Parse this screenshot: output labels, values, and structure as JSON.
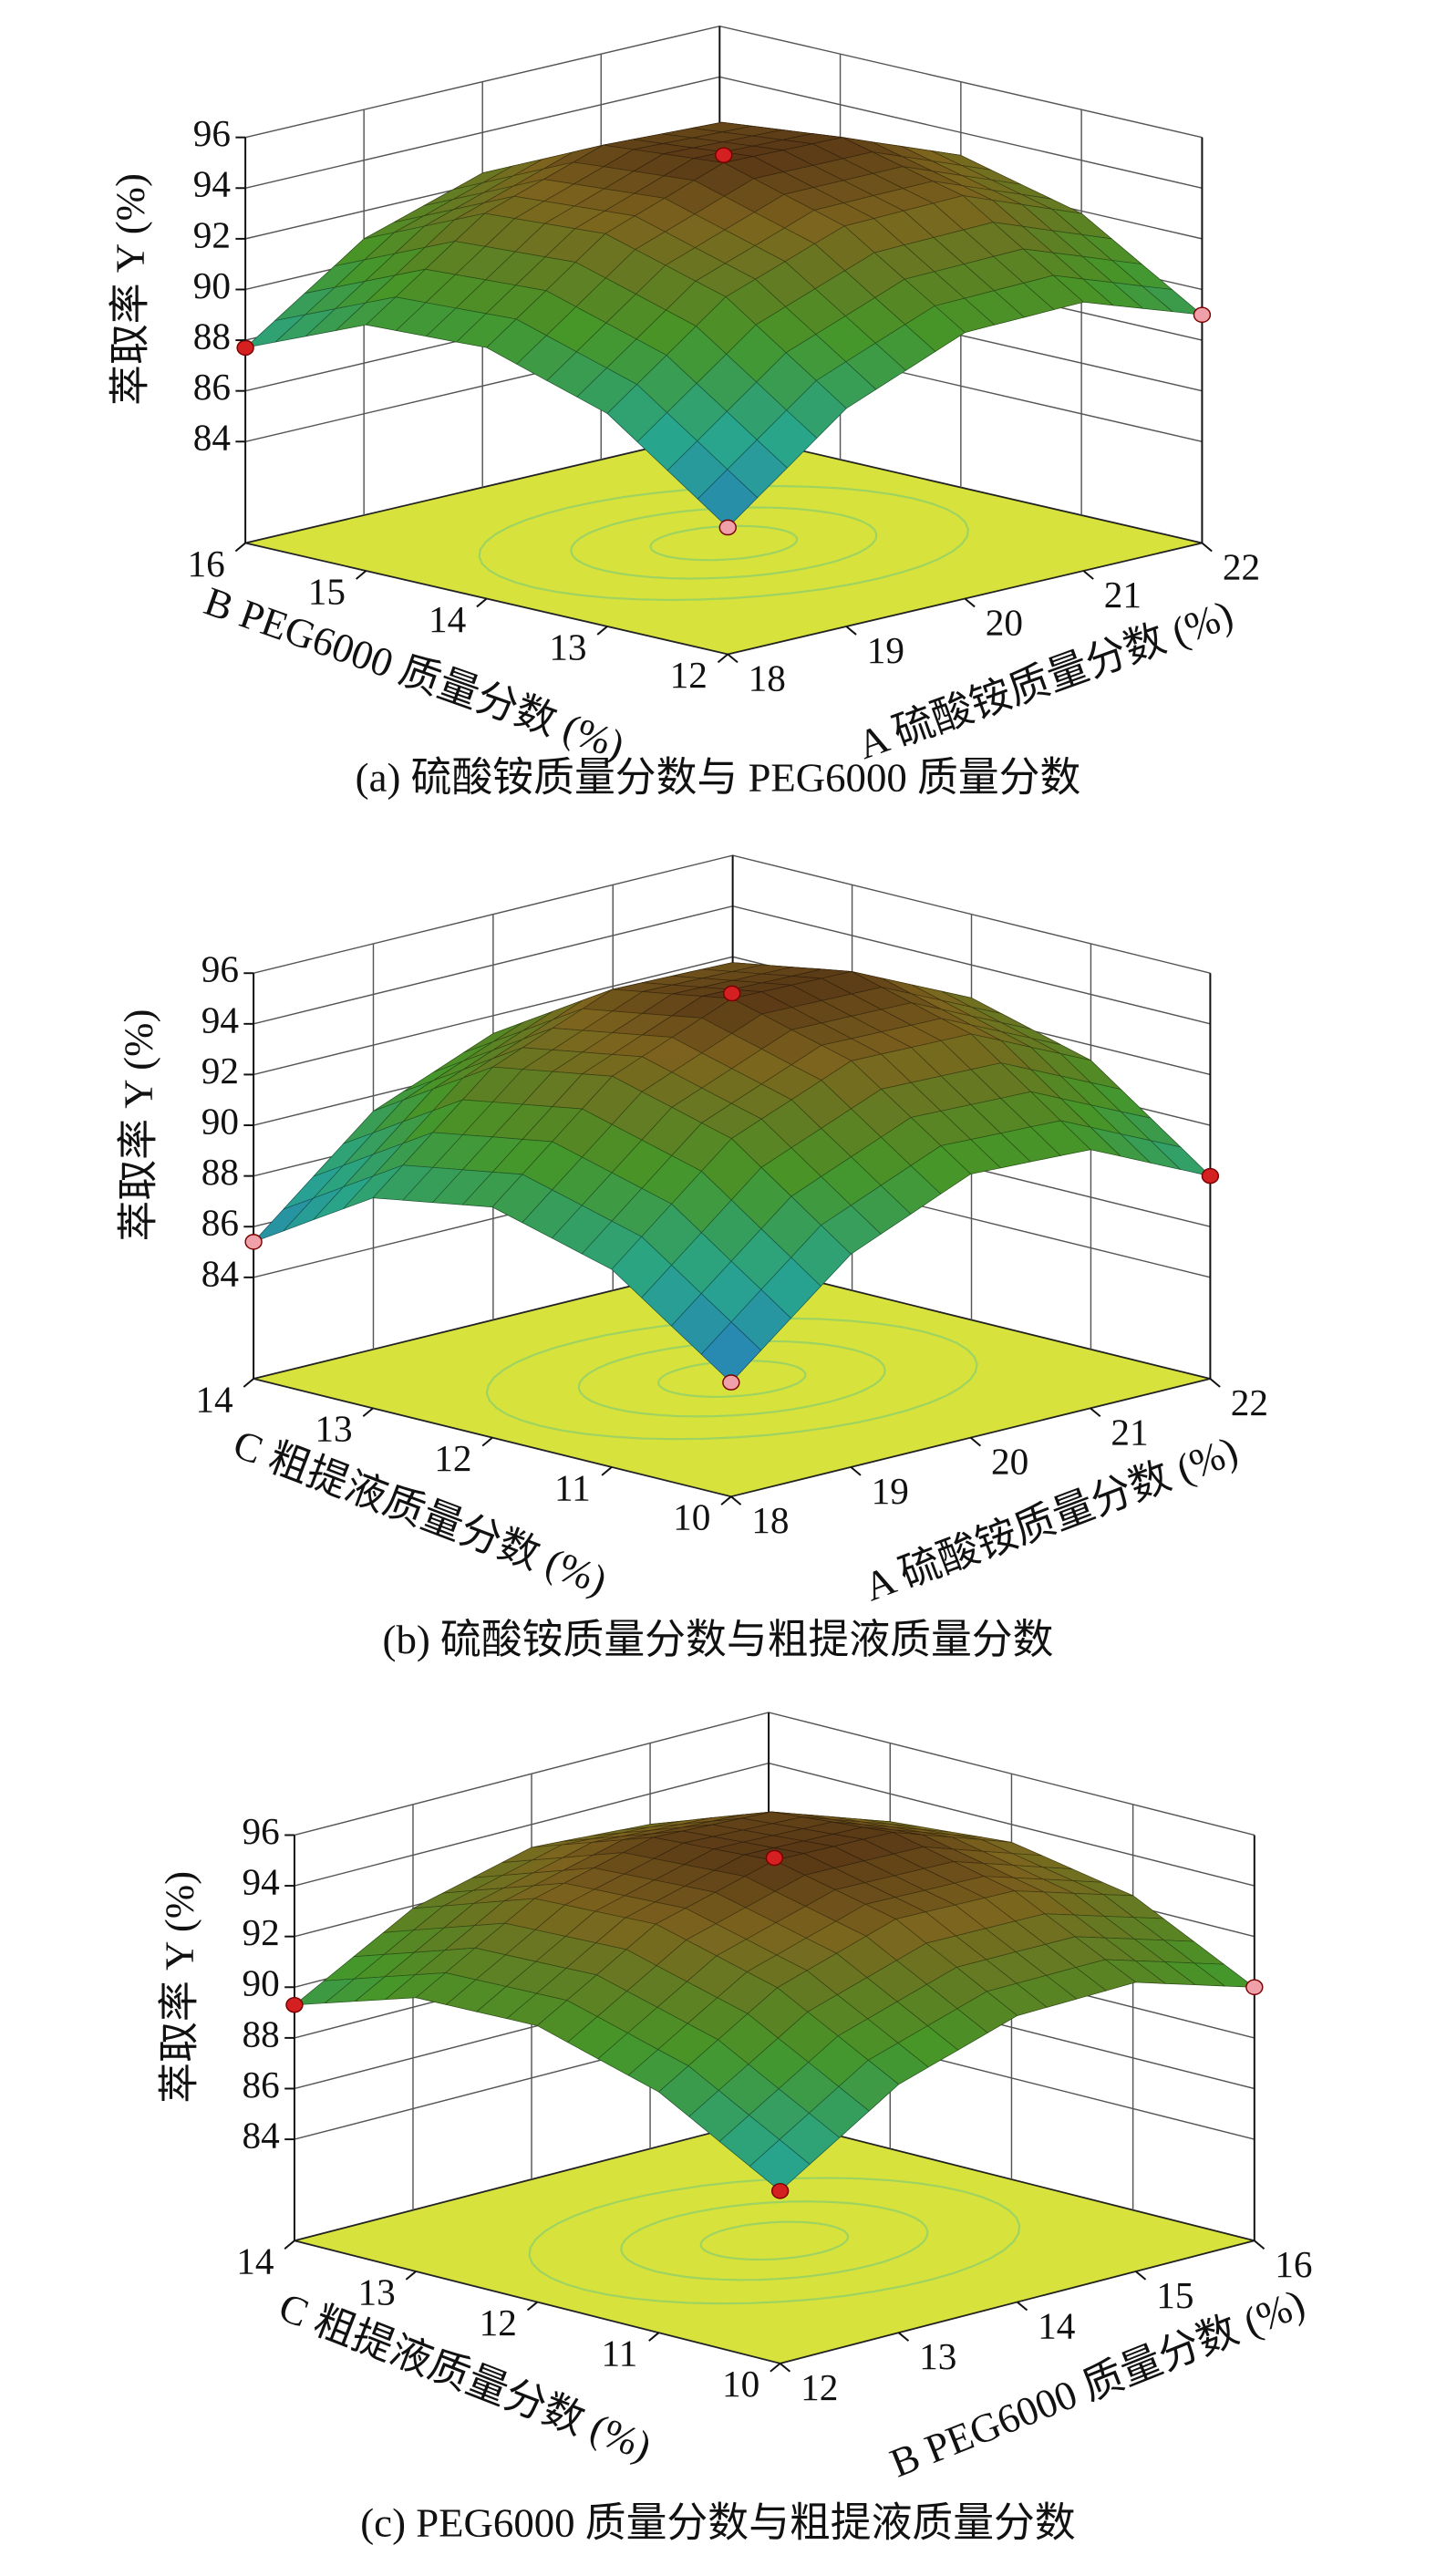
{
  "chart_data": [
    {
      "type": "surface",
      "title": "(a) 硫酸铵质量分数与 PEG6000 质量分数",
      "xlabel": "A 硫酸铵质量分数 (%)",
      "ylabel": "B PEG6000 质量分数 (%)",
      "zlabel": "萃取率 Y (%)",
      "x": [
        18,
        19,
        20,
        21,
        22
      ],
      "y": [
        12,
        13,
        14,
        15,
        16
      ],
      "z": [
        [
          85.0,
          88.6,
          90.5,
          90.6,
          89.0
        ],
        [
          88.4,
          91.9,
          93.6,
          93.7,
          91.9
        ],
        [
          89.9,
          93.3,
          95.0,
          94.9,
          93.1
        ],
        [
          89.7,
          93.0,
          94.6,
          94.4,
          92.4
        ],
        [
          87.7,
          90.9,
          92.4,
          92.1,
          90.0
        ]
      ],
      "xlim": [
        18,
        22
      ],
      "ylim": [
        12,
        16
      ],
      "zlim": [
        80,
        96
      ],
      "xticks": [
        18,
        19,
        20,
        21,
        22
      ],
      "yticks": [
        12,
        13,
        14,
        15,
        16
      ],
      "zticks": [
        84,
        86,
        88,
        90,
        92,
        94,
        96
      ],
      "points": {
        "x": [
          20,
          18,
          18,
          22
        ],
        "y": [
          14,
          16,
          12,
          12
        ],
        "z": [
          95.3,
          87.7,
          85.0,
          89.0
        ],
        "colors": [
          "#d42020",
          "#d42020",
          "#f0a0a8",
          "#f0a0a8"
        ]
      },
      "grid": true
    },
    {
      "type": "surface",
      "title": "(b) 硫酸铵质量分数与粗提液质量分数",
      "xlabel": "A 硫酸铵质量分数 (%)",
      "ylabel": "C 粗提液质量分数 (%)",
      "zlabel": "萃取率 Y (%)",
      "x": [
        18,
        19,
        20,
        21,
        22
      ],
      "y": [
        10,
        11,
        12,
        13,
        14
      ],
      "z": [
        [
          84.5,
          88.4,
          90.4,
          90.2,
          88.0
        ],
        [
          87.8,
          91.8,
          93.7,
          93.6,
          91.4
        ],
        [
          89.1,
          93.1,
          95.0,
          94.9,
          92.7
        ],
        [
          88.3,
          92.3,
          94.2,
          94.1,
          91.9
        ],
        [
          85.4,
          89.4,
          91.3,
          91.2,
          89.0
        ]
      ],
      "xlim": [
        18,
        22
      ],
      "ylim": [
        10,
        14
      ],
      "zlim": [
        80,
        96
      ],
      "xticks": [
        18,
        19,
        20,
        21,
        22
      ],
      "yticks": [
        10,
        11,
        12,
        13,
        14
      ],
      "zticks": [
        84,
        86,
        88,
        90,
        92,
        94,
        96
      ],
      "points": {
        "x": [
          20,
          18,
          18,
          22
        ],
        "y": [
          12,
          14,
          10,
          10
        ],
        "z": [
          95.2,
          85.4,
          84.5,
          88.0
        ],
        "colors": [
          "#d42020",
          "#f0a0a8",
          "#f0a0a8",
          "#d42020"
        ]
      },
      "grid": true
    },
    {
      "type": "surface",
      "title": "(c) PEG6000 质量分数与粗提液质量分数",
      "xlabel": "B PEG6000 质量分数 (%)",
      "ylabel": "C 粗提液质量分数 (%)",
      "zlabel": "萃取率 Y (%)",
      "x": [
        12,
        13,
        14,
        15,
        16
      ],
      "y": [
        10,
        11,
        12,
        13,
        14
      ],
      "z": [
        [
          86.8,
          89.8,
          91.3,
          91.4,
          90.0
        ],
        [
          89.5,
          92.4,
          93.9,
          93.8,
          92.4
        ],
        [
          90.9,
          93.7,
          95.0,
          94.9,
          93.3
        ],
        [
          90.8,
          93.5,
          94.7,
          94.5,
          92.9
        ],
        [
          89.3,
          91.9,
          93.1,
          92.8,
          91.0
        ]
      ],
      "xlim": [
        12,
        16
      ],
      "ylim": [
        10,
        14
      ],
      "zlim": [
        80,
        96
      ],
      "xticks": [
        12,
        13,
        14,
        15,
        16
      ],
      "yticks": [
        10,
        11,
        12,
        13,
        14
      ],
      "zticks": [
        84,
        86,
        88,
        90,
        92,
        94,
        96
      ],
      "points": {
        "x": [
          14,
          12,
          12,
          16
        ],
        "y": [
          12,
          14,
          10,
          10
        ],
        "z": [
          95.1,
          89.3,
          86.8,
          90.0
        ],
        "colors": [
          "#d42020",
          "#d42020",
          "#d42020",
          "#f0a0a8"
        ]
      },
      "grid": true
    }
  ]
}
